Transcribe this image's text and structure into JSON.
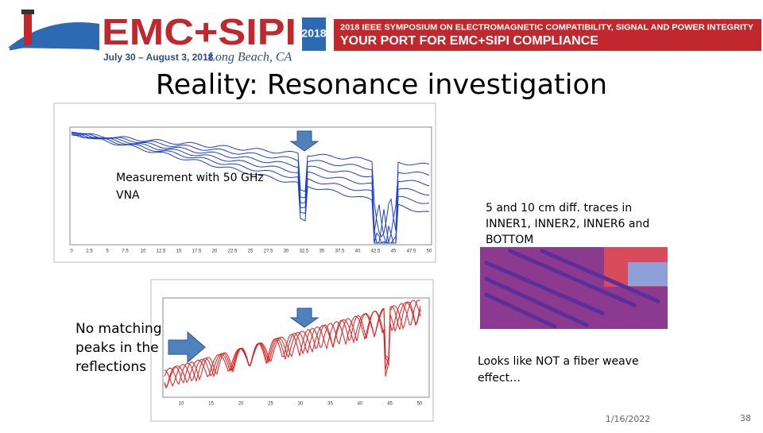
{
  "header": {
    "logo_text": "EMC+SIPI",
    "logo_year": "2018",
    "dates": "July 30 – August 3, 2018",
    "location": "Long Beach, CA",
    "banner_line1": "2018 IEEE SYMPOSIUM ON ELECTROMAGNETIC COMPATIBILITY, SIGNAL AND POWER INTEGRITY",
    "banner_line2": "YOUR PORT FOR EMC+SIPI COMPLIANCE"
  },
  "title": "Reality: Resonance investigation",
  "plot1": {
    "note_lines": [
      "Measurement with 50 GHz",
      "VNA"
    ],
    "xticks": [
      "0",
      "2.5",
      "5",
      "7.5",
      "10",
      "12.5",
      "15",
      "17.5",
      "20",
      "22.5",
      "25",
      "27.5",
      "30",
      "32.5",
      "35",
      "37.5",
      "40",
      "42.5",
      "45",
      "47.5",
      "50"
    ]
  },
  "plot2": {
    "note_lines": [
      "No matching",
      "peaks in the",
      "reflections"
    ],
    "xticks": [
      "10",
      "15",
      "20",
      "25",
      "30",
      "35",
      "40",
      "45",
      "50"
    ]
  },
  "traces_note": [
    "5 and 10 cm diff. traces in",
    "INNER1, INNER2, INNER6 and",
    "BOTTOM"
  ],
  "conclusion": [
    "Looks like NOT a fiber weave",
    "effect…"
  ],
  "footer": {
    "date": "1/16/2022",
    "page": "38"
  }
}
